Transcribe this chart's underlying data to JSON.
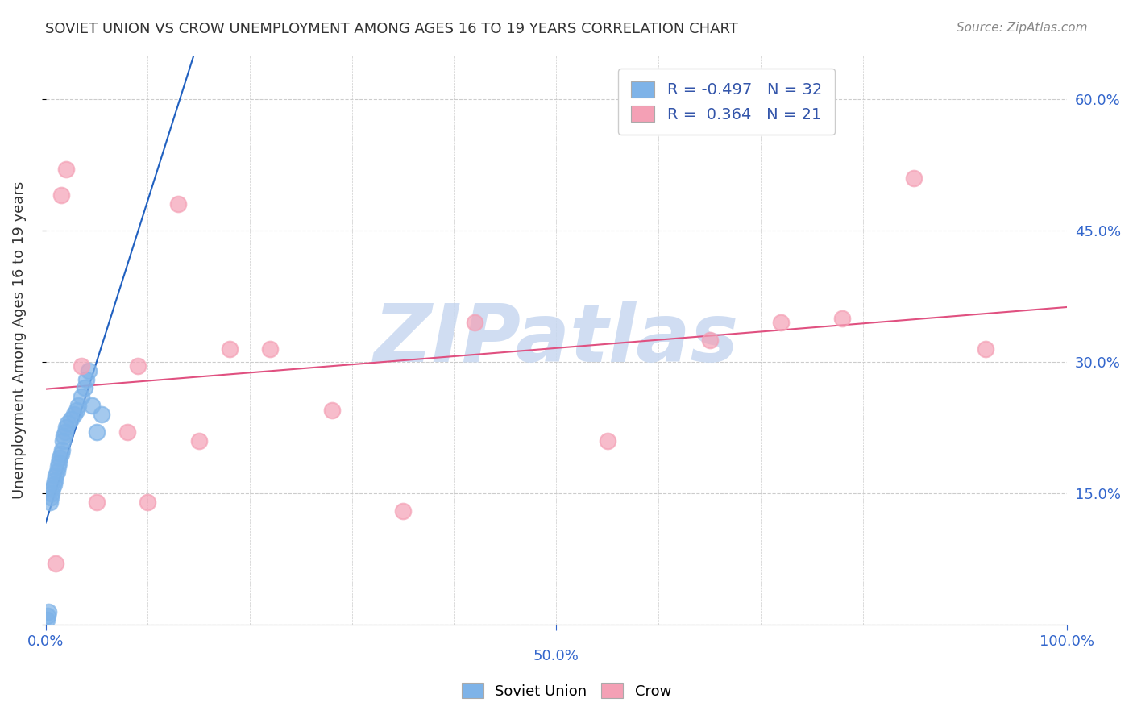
{
  "title": "SOVIET UNION VS CROW UNEMPLOYMENT AMONG AGES 16 TO 19 YEARS CORRELATION CHART",
  "source": "Source: ZipAtlas.com",
  "ylabel": "Unemployment Among Ages 16 to 19 years",
  "xlim": [
    0,
    1
  ],
  "ylim": [
    0,
    0.65
  ],
  "y_ticks": [
    0.0,
    0.15,
    0.3,
    0.45,
    0.6
  ],
  "soviet_union_color": "#7eb3e8",
  "crow_color": "#f4a0b5",
  "soviet_union_line_color": "#2060c0",
  "crow_line_color": "#e05080",
  "legend_border_color": "#cccccc",
  "grid_color": "#cccccc",
  "watermark_color": "#c8d8f0",
  "soviet_union_R": -0.497,
  "soviet_union_N": 32,
  "crow_R": 0.364,
  "crow_N": 21,
  "soviet_union_x": [
    0.001,
    0.002,
    0.003,
    0.004,
    0.005,
    0.006,
    0.007,
    0.008,
    0.009,
    0.01,
    0.011,
    0.012,
    0.013,
    0.014,
    0.015,
    0.016,
    0.017,
    0.018,
    0.019,
    0.02,
    0.022,
    0.025,
    0.028,
    0.03,
    0.032,
    0.035,
    0.038,
    0.04,
    0.042,
    0.045,
    0.05,
    0.055
  ],
  "soviet_union_y": [
    0.005,
    0.01,
    0.015,
    0.14,
    0.145,
    0.15,
    0.155,
    0.16,
    0.165,
    0.17,
    0.175,
    0.18,
    0.185,
    0.19,
    0.195,
    0.2,
    0.21,
    0.215,
    0.22,
    0.225,
    0.23,
    0.235,
    0.24,
    0.245,
    0.25,
    0.26,
    0.27,
    0.28,
    0.29,
    0.25,
    0.22,
    0.24
  ],
  "crow_x": [
    0.01,
    0.015,
    0.02,
    0.035,
    0.05,
    0.08,
    0.09,
    0.1,
    0.13,
    0.15,
    0.18,
    0.22,
    0.28,
    0.35,
    0.42,
    0.55,
    0.65,
    0.72,
    0.78,
    0.85,
    0.92
  ],
  "crow_y": [
    0.07,
    0.49,
    0.52,
    0.295,
    0.14,
    0.22,
    0.295,
    0.14,
    0.48,
    0.21,
    0.315,
    0.315,
    0.245,
    0.13,
    0.345,
    0.21,
    0.325,
    0.345,
    0.35,
    0.51,
    0.315
  ]
}
